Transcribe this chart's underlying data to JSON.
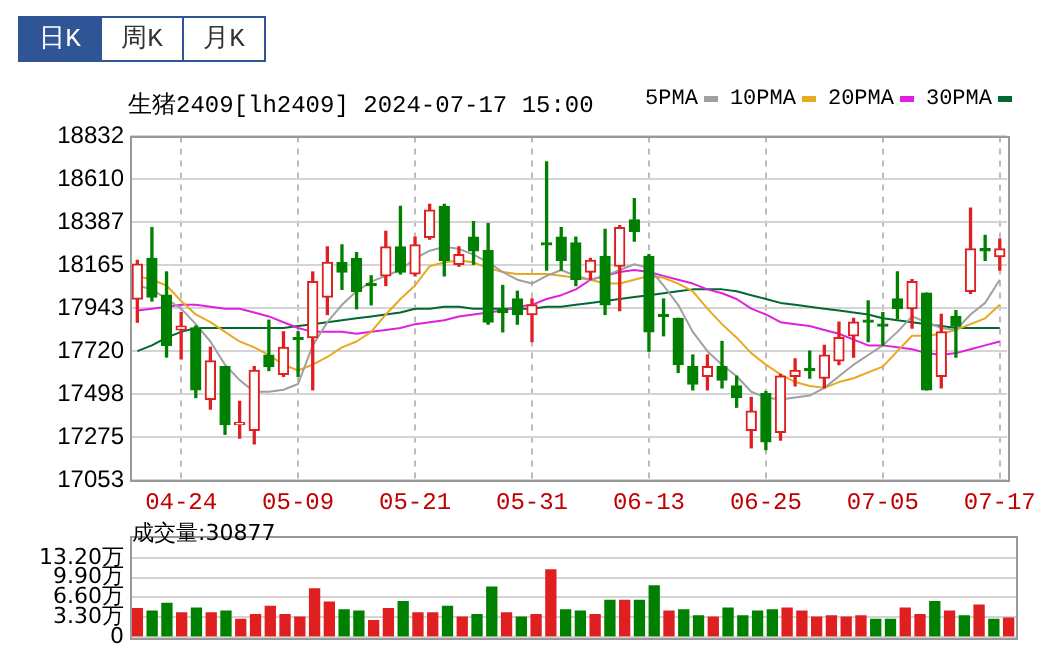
{
  "chart_data": [
    {
      "type": "candlestick",
      "title": "生猪2409[lh2409] 2024-07-17 15:00",
      "annotations": [
        "日K",
        "周K",
        "月K"
      ],
      "categories": [
        null,
        null,
        null,
        "04-24",
        null,
        null,
        null,
        null,
        null,
        null,
        null,
        "05-09",
        null,
        null,
        null,
        null,
        null,
        null,
        null,
        "05-21",
        null,
        null,
        null,
        null,
        null,
        null,
        null,
        "05-31",
        null,
        null,
        null,
        null,
        null,
        null,
        null,
        "06-13",
        null,
        null,
        null,
        null,
        null,
        null,
        null,
        "06-25",
        null,
        null,
        null,
        null,
        null,
        null,
        null,
        "07-05",
        null,
        null,
        null,
        null,
        null,
        null,
        null,
        "07-17"
      ],
      "ohlc": [
        [
          17990,
          18190,
          17870,
          18170
        ],
        [
          18200,
          18360,
          17980,
          18000
        ],
        [
          18010,
          18130,
          17690,
          17750
        ],
        [
          17830,
          17920,
          17680,
          17850
        ],
        [
          17840,
          17850,
          17480,
          17520
        ],
        [
          17470,
          17740,
          17420,
          17670
        ],
        [
          17640,
          17640,
          17290,
          17340
        ],
        [
          17340,
          17460,
          17270,
          17350
        ],
        [
          17310,
          17640,
          17240,
          17620
        ],
        [
          17700,
          17880,
          17620,
          17640
        ],
        [
          17600,
          17820,
          17590,
          17740
        ],
        [
          17790,
          17820,
          17590,
          17780
        ],
        [
          17790,
          18130,
          17520,
          18080
        ],
        [
          18000,
          18260,
          17910,
          18180
        ],
        [
          18180,
          18270,
          18040,
          18130
        ],
        [
          18200,
          18230,
          17940,
          18030
        ],
        [
          18070,
          18110,
          17960,
          18060
        ],
        [
          18110,
          18340,
          18060,
          18260
        ],
        [
          18260,
          18470,
          18120,
          18130
        ],
        [
          18120,
          18310,
          18110,
          18270
        ],
        [
          18310,
          18480,
          18300,
          18450
        ],
        [
          18470,
          18480,
          18110,
          18190
        ],
        [
          18170,
          18260,
          18160,
          18220
        ],
        [
          18310,
          18390,
          18170,
          18240
        ],
        [
          18240,
          18380,
          17860,
          17870
        ],
        [
          17940,
          18060,
          17820,
          17920
        ],
        [
          17990,
          18030,
          17860,
          17910
        ],
        [
          17910,
          17990,
          17770,
          17960
        ],
        [
          18280,
          18700,
          18140,
          18270
        ],
        [
          18310,
          18360,
          18140,
          18190
        ],
        [
          18280,
          18310,
          18060,
          18090
        ],
        [
          18130,
          18200,
          18090,
          18190
        ],
        [
          18210,
          18350,
          17910,
          17960
        ],
        [
          18160,
          18370,
          17930,
          18360
        ],
        [
          18400,
          18510,
          18290,
          18340
        ],
        [
          18210,
          18220,
          17720,
          17820
        ],
        [
          17910,
          17990,
          17800,
          17900
        ],
        [
          17890,
          17890,
          17610,
          17650
        ],
        [
          17640,
          17700,
          17520,
          17550
        ],
        [
          17590,
          17700,
          17520,
          17640
        ],
        [
          17640,
          17770,
          17530,
          17570
        ],
        [
          17540,
          17590,
          17430,
          17480
        ],
        [
          17310,
          17480,
          17220,
          17410
        ],
        [
          17500,
          17510,
          17210,
          17250
        ],
        [
          17300,
          17600,
          17260,
          17590
        ],
        [
          17590,
          17680,
          17540,
          17620
        ],
        [
          17630,
          17720,
          17580,
          17620
        ],
        [
          17580,
          17750,
          17530,
          17700
        ],
        [
          17670,
          17870,
          17650,
          17790
        ],
        [
          17800,
          17890,
          17690,
          17870
        ],
        [
          17880,
          17980,
          17770,
          17870
        ],
        [
          17860,
          17920,
          17750,
          17850
        ],
        [
          17990,
          18130,
          17890,
          17940
        ],
        [
          17940,
          18090,
          17840,
          18080
        ],
        [
          18020,
          18020,
          17520,
          17520
        ],
        [
          17590,
          17910,
          17530,
          17820
        ],
        [
          17900,
          17930,
          17690,
          17850
        ],
        [
          18030,
          18460,
          18020,
          18250
        ],
        [
          18250,
          18320,
          18190,
          18240
        ],
        [
          18210,
          18300,
          18140,
          18250
        ]
      ],
      "series": [
        {
          "type": "line",
          "name": "5PMA",
          "color": "#a0a0a0",
          "values": [
            18060,
            18040,
            17990,
            17940,
            17860,
            17770,
            17650,
            17570,
            17510,
            17510,
            17520,
            17550,
            17750,
            17870,
            17960,
            18030,
            18080,
            18110,
            18140,
            18200,
            18240,
            18260,
            18250,
            18220,
            18180,
            18130,
            18090,
            18070,
            18110,
            18140,
            18110,
            18090,
            18110,
            18140,
            18170,
            18150,
            18060,
            17960,
            17820,
            17720,
            17650,
            17590,
            17510,
            17480,
            17470,
            17480,
            17490,
            17530,
            17590,
            17650,
            17700,
            17750,
            17820,
            17900,
            17870,
            17840,
            17830,
            17910,
            17970,
            18090
          ]
        },
        {
          "type": "line",
          "name": "10PMA",
          "color": "#e8a820",
          "values": [
            18110,
            18090,
            18060,
            17980,
            17910,
            17870,
            17820,
            17770,
            17740,
            17700,
            17650,
            17620,
            17650,
            17690,
            17740,
            17770,
            17820,
            17910,
            17990,
            18060,
            18160,
            18180,
            18190,
            18180,
            18150,
            18130,
            18120,
            18120,
            18120,
            18110,
            18100,
            18090,
            18070,
            18070,
            18090,
            18110,
            18100,
            18070,
            18030,
            17940,
            17860,
            17790,
            17710,
            17650,
            17600,
            17560,
            17540,
            17530,
            17560,
            17580,
            17610,
            17640,
            17720,
            17800,
            17800,
            17810,
            17830,
            17860,
            17890,
            17960
          ]
        },
        {
          "type": "line",
          "name": "20PMA",
          "color": "#e020e0",
          "values": [
            17930,
            17940,
            17950,
            17960,
            17960,
            17950,
            17940,
            17940,
            17920,
            17900,
            17870,
            17840,
            17820,
            17820,
            17820,
            17810,
            17820,
            17830,
            17840,
            17860,
            17870,
            17880,
            17900,
            17910,
            17920,
            17930,
            17950,
            17960,
            17990,
            18010,
            18040,
            18090,
            18110,
            18130,
            18140,
            18130,
            18110,
            18090,
            18070,
            18040,
            18020,
            17990,
            17940,
            17910,
            17870,
            17860,
            17850,
            17830,
            17810,
            17780,
            17750,
            17750,
            17740,
            17730,
            17710,
            17700,
            17710,
            17730,
            17750,
            17770
          ]
        },
        {
          "type": "line",
          "name": "30PMA",
          "color": "#006830",
          "values": [
            17720,
            17750,
            17790,
            17820,
            17840,
            17840,
            17840,
            17840,
            17840,
            17840,
            17840,
            17850,
            17860,
            17870,
            17880,
            17890,
            17900,
            17910,
            17920,
            17940,
            17940,
            17950,
            17950,
            17940,
            17940,
            17940,
            17940,
            17940,
            17950,
            17950,
            17960,
            17970,
            17980,
            17990,
            18000,
            18010,
            18020,
            18030,
            18040,
            18040,
            18040,
            18030,
            18010,
            17990,
            17970,
            17960,
            17950,
            17940,
            17930,
            17920,
            17910,
            17890,
            17880,
            17870,
            17860,
            17850,
            17840,
            17840,
            17840,
            17840
          ]
        }
      ],
      "ylim": [
        17053,
        18832
      ],
      "yticks": [
        17053,
        17275,
        17498,
        17720,
        17943,
        18165,
        18387,
        18610,
        18832
      ],
      "grid": true,
      "legend": "top right",
      "marker": "none"
    },
    {
      "type": "bar",
      "title": "成交量:30877",
      "categories": [
        null,
        null,
        null,
        null,
        null,
        null,
        null,
        null,
        null,
        null,
        null,
        null,
        null,
        null,
        null,
        null,
        null,
        null,
        null,
        null,
        null,
        null,
        null,
        null,
        null,
        null,
        null,
        null,
        null,
        null,
        null,
        null,
        null,
        null,
        null,
        null,
        null,
        null,
        null,
        null,
        null,
        null,
        null,
        null,
        null,
        null,
        null,
        null,
        null,
        null,
        null,
        null,
        null,
        null,
        null,
        null,
        null,
        null,
        null,
        null
      ],
      "values": [
        4.7,
        4.3,
        5.6,
        4.0,
        4.8,
        4.0,
        4.3,
        2.9,
        3.7,
        5.1,
        3.7,
        3.3,
        8.0,
        5.8,
        4.5,
        4.3,
        2.7,
        4.7,
        5.9,
        4.0,
        4.0,
        5.1,
        3.3,
        3.7,
        8.3,
        4.0,
        3.3,
        3.7,
        11.2,
        4.5,
        4.3,
        3.7,
        6.1,
        6.1,
        6.1,
        8.5,
        4.3,
        4.5,
        3.5,
        3.3,
        4.8,
        3.5,
        4.3,
        4.5,
        4.8,
        4.3,
        3.3,
        3.5,
        3.3,
        3.5,
        2.9,
        2.9,
        4.8,
        3.7,
        5.9,
        4.3,
        3.5,
        5.3,
        2.9,
        3.1
      ],
      "colors": [
        "#e02020",
        "#008000",
        "#008000",
        "#e02020",
        "#008000",
        "#e02020",
        "#008000",
        "#e02020",
        "#e02020",
        "#e02020",
        "#e02020",
        "#e02020",
        "#e02020",
        "#e02020",
        "#008000",
        "#008000",
        "#e02020",
        "#e02020",
        "#008000",
        "#e02020",
        "#e02020",
        "#008000",
        "#e02020",
        "#008000",
        "#008000",
        "#e02020",
        "#008000",
        "#e02020",
        "#e02020",
        "#008000",
        "#008000",
        "#e02020",
        "#008000",
        "#e02020",
        "#008000",
        "#008000",
        "#e02020",
        "#008000",
        "#008000",
        "#e02020",
        "#008000",
        "#008000",
        "#008000",
        "#008000",
        "#e02020",
        "#e02020",
        "#e02020",
        "#e02020",
        "#e02020",
        "#e02020",
        "#008000",
        "#008000",
        "#e02020",
        "#e02020",
        "#008000",
        "#e02020",
        "#008000",
        "#e02020",
        "#008000",
        "#e02020"
      ],
      "ylim": [
        0,
        17
      ],
      "yticks": [
        0,
        {
          "value": 3.3,
          "label": "3.30万"
        },
        {
          "value": 6.6,
          "label": "6.60万"
        },
        {
          "value": 9.9,
          "label": "9.90万"
        },
        {
          "value": 13.2,
          "label": "13.20万"
        }
      ],
      "grid": "y",
      "tick_labels": "y"
    }
  ]
}
